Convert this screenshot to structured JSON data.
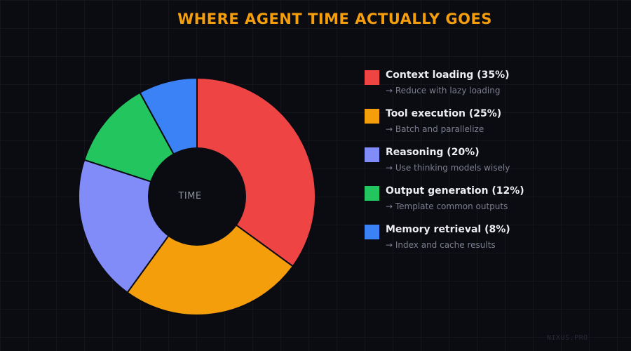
{
  "title": "WHERE AGENT TIME ACTUALLY GOES",
  "watermark": "NIXUS.PRO",
  "chart_data": {
    "type": "pie",
    "variant": "donut",
    "title": "WHERE AGENT TIME ACTUALLY GOES",
    "center_label": "TIME",
    "categories": [
      "Context loading",
      "Tool execution",
      "Reasoning",
      "Output generation",
      "Memory retrieval"
    ],
    "values": [
      35,
      25,
      20,
      12,
      8
    ],
    "colors": [
      "#ef4444",
      "#f59e0b",
      "#818cf8",
      "#22c55e",
      "#3b82f6"
    ],
    "legend_placement": "right",
    "legend": [
      {
        "label": "Context loading (35%)",
        "tip": "→ Reduce with lazy loading"
      },
      {
        "label": "Tool execution (25%)",
        "tip": "→ Batch and parallelize"
      },
      {
        "label": "Reasoning (20%)",
        "tip": "→ Use thinking models wisely"
      },
      {
        "label": "Output generation (12%)",
        "tip": "→ Template common outputs"
      },
      {
        "label": "Memory retrieval (8%)",
        "tip": "→ Index and cache results"
      }
    ]
  }
}
